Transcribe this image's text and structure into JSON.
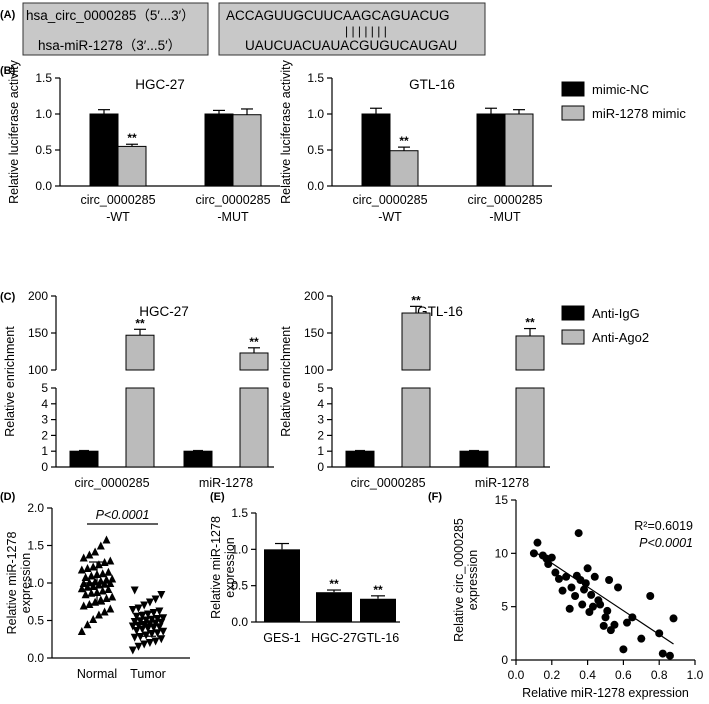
{
  "panels": {
    "A": {
      "label": "(A)"
    },
    "B": {
      "label": "(B)"
    },
    "C": {
      "label": "(C)"
    },
    "D": {
      "label": "(D)"
    },
    "E": {
      "label": "(E)"
    },
    "F": {
      "label": "(F)"
    }
  },
  "sequence_box": {
    "circ_name": "hsa_circ_0000285（5′...3′）",
    "mir_name": "hsa-miR-1278（3′...5′）",
    "circ_seq": "ACCAGUUGCUUCAAGCAGUACUG",
    "pairing": "| | | | | | |",
    "mir_seq": "UAUCUACUAUACGUGUCAUGAU"
  },
  "chart_data": [
    {
      "id": "B-HGC27",
      "type": "bar",
      "title": "HGC-27",
      "ylabel": "Relative luciferase activity",
      "ylim": [
        0,
        1.5
      ],
      "yticks": [
        "0.0",
        "0.5",
        "1.0",
        "1.5"
      ],
      "groups": [
        {
          "label_lines": [
            "circ_0000285",
            "-WT"
          ],
          "values": [
            1.0,
            0.55
          ],
          "errors": [
            0.06,
            0.03
          ],
          "marks": [
            "",
            "**"
          ]
        },
        {
          "label_lines": [
            "circ_0000285",
            "-MUT"
          ],
          "values": [
            1.0,
            0.99
          ],
          "errors": [
            0.05,
            0.08
          ],
          "marks": [
            "",
            ""
          ]
        }
      ],
      "series": [
        "mimic-NC",
        "miR-1278 mimic"
      ]
    },
    {
      "id": "B-GTL16",
      "type": "bar",
      "title": "GTL-16",
      "ylabel": "Relative luciferase activity",
      "ylim": [
        0,
        1.5
      ],
      "yticks": [
        "0.0",
        "0.5",
        "1.0",
        "1.5"
      ],
      "groups": [
        {
          "label_lines": [
            "circ_0000285",
            "-WT"
          ],
          "values": [
            1.0,
            0.49
          ],
          "errors": [
            0.08,
            0.05
          ],
          "marks": [
            "",
            "**"
          ]
        },
        {
          "label_lines": [
            "circ_0000285",
            "-MUT"
          ],
          "values": [
            1.0,
            1.0
          ],
          "errors": [
            0.08,
            0.06
          ],
          "marks": [
            "",
            ""
          ]
        }
      ],
      "series": [
        "mimic-NC",
        "miR-1278 mimic"
      ],
      "legend": [
        {
          "name": "mimic-NC",
          "color": "#000000"
        },
        {
          "name": "miR-1278 mimic",
          "color": "#bbbbbb"
        }
      ]
    },
    {
      "id": "C-HGC27",
      "type": "bar",
      "title": "HGC-27",
      "ylabel": "Relative enrichment",
      "broken_axis": true,
      "lower_range": [
        0,
        5
      ],
      "upper_range": [
        100,
        200
      ],
      "lower_ticks": [
        "0",
        "1",
        "2",
        "3",
        "4",
        "5"
      ],
      "upper_ticks": [
        "100",
        "150",
        "200"
      ],
      "groups": [
        {
          "label": "circ_0000285",
          "values": [
            1.0,
            147
          ],
          "errors": [
            0.05,
            8
          ],
          "marks": [
            "",
            "**"
          ]
        },
        {
          "label": "miR-1278",
          "values": [
            1.0,
            123
          ],
          "errors": [
            0.05,
            7
          ],
          "marks": [
            "",
            "**"
          ]
        }
      ],
      "series": [
        "Anti-IgG",
        "Anti-Ago2"
      ]
    },
    {
      "id": "C-GTL16",
      "type": "bar",
      "title": "GTL-16",
      "ylabel": "Relative enrichment",
      "broken_axis": true,
      "lower_range": [
        0,
        5
      ],
      "upper_range": [
        100,
        200
      ],
      "lower_ticks": [
        "0",
        "1",
        "2",
        "3",
        "4",
        "5"
      ],
      "upper_ticks": [
        "100",
        "150",
        "200"
      ],
      "groups": [
        {
          "label": "circ_0000285",
          "values": [
            1.0,
            177
          ],
          "errors": [
            0.05,
            9
          ],
          "marks": [
            "",
            "**"
          ]
        },
        {
          "label": "miR-1278",
          "values": [
            1.0,
            146
          ],
          "errors": [
            0.05,
            10
          ],
          "marks": [
            "",
            "**"
          ]
        }
      ],
      "series": [
        "Anti-IgG",
        "Anti-Ago2"
      ],
      "legend": [
        {
          "name": "Anti-IgG",
          "color": "#000000"
        },
        {
          "name": "Anti-Ago2",
          "color": "#bbbbbb"
        }
      ]
    },
    {
      "id": "D",
      "type": "scatter",
      "ylabel": "Relative miR-1278 expression",
      "ylim": [
        0,
        2.0
      ],
      "yticks": [
        "0.0",
        "0.5",
        "1.0",
        "1.5",
        "2.0"
      ],
      "categories": [
        "Normal",
        "Tumor"
      ],
      "annotation": "P<0.0001",
      "groups": [
        {
          "name": "Normal",
          "marker": "triangle",
          "mean": 1.0,
          "sd": 0.28,
          "values": [
            0.36,
            0.45,
            0.52,
            0.58,
            0.62,
            0.66,
            0.7,
            0.72,
            0.75,
            0.78,
            0.8,
            0.82,
            0.85,
            0.87,
            0.88,
            0.9,
            0.92,
            0.93,
            0.95,
            0.96,
            0.98,
            0.99,
            1.0,
            1.0,
            1.01,
            1.02,
            1.03,
            1.05,
            1.06,
            1.08,
            1.1,
            1.12,
            1.13,
            1.15,
            1.18,
            1.2,
            1.22,
            1.25,
            1.28,
            1.3,
            1.34,
            1.38,
            1.42,
            1.5,
            1.58
          ]
        },
        {
          "name": "Tumor",
          "marker": "triangle-down",
          "mean": 0.45,
          "sd": 0.16,
          "values": [
            0.1,
            0.15,
            0.18,
            0.2,
            0.22,
            0.25,
            0.27,
            0.28,
            0.3,
            0.32,
            0.33,
            0.35,
            0.36,
            0.38,
            0.39,
            0.4,
            0.41,
            0.42,
            0.43,
            0.44,
            0.45,
            0.46,
            0.47,
            0.48,
            0.49,
            0.5,
            0.51,
            0.52,
            0.53,
            0.55,
            0.56,
            0.58,
            0.6,
            0.62,
            0.64,
            0.66,
            0.7,
            0.74,
            0.78,
            0.84,
            0.9
          ]
        }
      ]
    },
    {
      "id": "E",
      "type": "bar",
      "ylabel": "Relative miR-1278 expression",
      "ylim": [
        0,
        1.5
      ],
      "yticks": [
        "0.0",
        "0.5",
        "1.0",
        "1.5"
      ],
      "categories": [
        "GES-1",
        "HGC-27",
        "GTL-16"
      ],
      "values": [
        1.0,
        0.41,
        0.32
      ],
      "errors": [
        0.08,
        0.03,
        0.04
      ],
      "marks": [
        "",
        "**",
        "**"
      ]
    },
    {
      "id": "F",
      "type": "scatter",
      "xlabel": "Relative miR-1278 expression",
      "ylabel": "Relative circ_0000285 expression",
      "xlim": [
        0,
        1.0
      ],
      "ylim": [
        0,
        15
      ],
      "xticks": [
        "0.0",
        "0.2",
        "0.4",
        "0.6",
        "0.8",
        "1.0"
      ],
      "yticks": [
        "0",
        "5",
        "10",
        "15"
      ],
      "r2_label": "R²=0.6019",
      "p_label": "P<0.0001",
      "fit": {
        "x0": 0.1,
        "y0": 10.2,
        "x1": 0.88,
        "y1": 1.5
      },
      "points": [
        {
          "x": 0.1,
          "y": 10.0
        },
        {
          "x": 0.12,
          "y": 11.0
        },
        {
          "x": 0.15,
          "y": 9.8
        },
        {
          "x": 0.17,
          "y": 9.5
        },
        {
          "x": 0.18,
          "y": 9.0
        },
        {
          "x": 0.2,
          "y": 9.6
        },
        {
          "x": 0.22,
          "y": 8.2
        },
        {
          "x": 0.24,
          "y": 7.6
        },
        {
          "x": 0.26,
          "y": 6.5
        },
        {
          "x": 0.28,
          "y": 7.8
        },
        {
          "x": 0.3,
          "y": 4.8
        },
        {
          "x": 0.31,
          "y": 6.8
        },
        {
          "x": 0.33,
          "y": 6.0
        },
        {
          "x": 0.34,
          "y": 7.9
        },
        {
          "x": 0.35,
          "y": 11.9
        },
        {
          "x": 0.36,
          "y": 7.5
        },
        {
          "x": 0.37,
          "y": 5.2
        },
        {
          "x": 0.38,
          "y": 6.6
        },
        {
          "x": 0.39,
          "y": 7.2
        },
        {
          "x": 0.4,
          "y": 8.6
        },
        {
          "x": 0.41,
          "y": 4.5
        },
        {
          "x": 0.42,
          "y": 6.1
        },
        {
          "x": 0.43,
          "y": 5.0
        },
        {
          "x": 0.44,
          "y": 7.8
        },
        {
          "x": 0.46,
          "y": 5.6
        },
        {
          "x": 0.47,
          "y": 5.2
        },
        {
          "x": 0.49,
          "y": 3.2
        },
        {
          "x": 0.5,
          "y": 4.0
        },
        {
          "x": 0.51,
          "y": 4.6
        },
        {
          "x": 0.52,
          "y": 7.5
        },
        {
          "x": 0.53,
          "y": 2.8
        },
        {
          "x": 0.55,
          "y": 3.3
        },
        {
          "x": 0.57,
          "y": 6.8
        },
        {
          "x": 0.6,
          "y": 1.0
        },
        {
          "x": 0.62,
          "y": 3.5
        },
        {
          "x": 0.65,
          "y": 4.0
        },
        {
          "x": 0.7,
          "y": 2.0
        },
        {
          "x": 0.75,
          "y": 6.0
        },
        {
          "x": 0.8,
          "y": 2.5
        },
        {
          "x": 0.82,
          "y": 0.6
        },
        {
          "x": 0.86,
          "y": 0.4
        },
        {
          "x": 0.88,
          "y": 3.9
        }
      ]
    }
  ]
}
